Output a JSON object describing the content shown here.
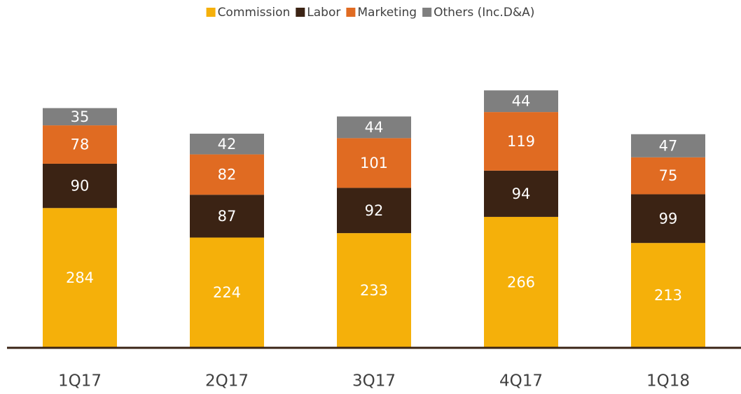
{
  "chart_data": {
    "type": "stacked_bar",
    "categories": [
      "1Q17",
      "2Q17",
      "3Q17",
      "4Q17",
      "1Q18"
    ],
    "series": [
      {
        "name": "Commission",
        "color": "#f5b00a",
        "values": [
          284,
          224,
          233,
          266,
          213
        ]
      },
      {
        "name": "Labor",
        "color": "#3b2314",
        "values": [
          90,
          87,
          92,
          94,
          99
        ]
      },
      {
        "name": "Marketing",
        "color": "#e06b22",
        "values": [
          78,
          82,
          101,
          119,
          75
        ]
      },
      {
        "name": "Others (Inc.D&A)",
        "color": "#7f7f7f",
        "values": [
          35,
          42,
          44,
          44,
          47
        ]
      }
    ],
    "ylim": [
      0,
      600
    ],
    "legend": "top"
  }
}
